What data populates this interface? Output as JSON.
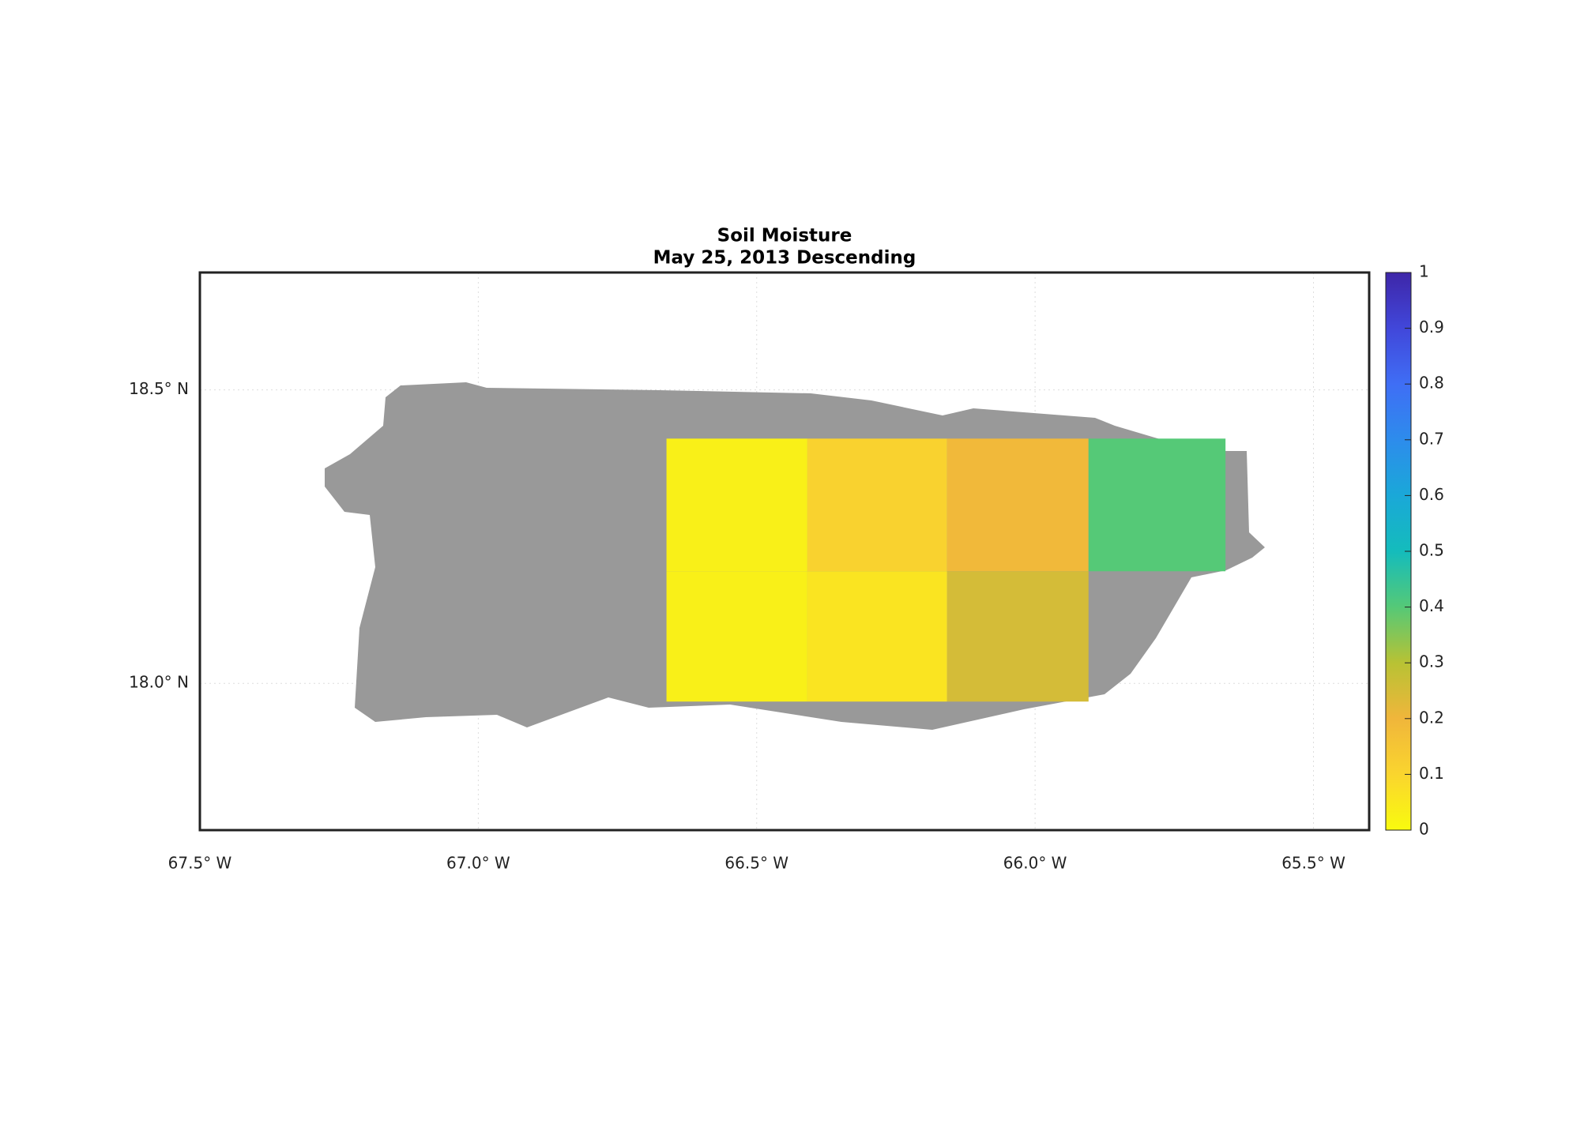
{
  "chart_data": {
    "type": "gridmap",
    "title": "Soil Moisture",
    "subtitle": "May 25, 2013 Descending",
    "xlim": [
      -67.5,
      -65.4
    ],
    "ylim": [
      17.75,
      18.7
    ],
    "xticks": [
      {
        "value": -67.5,
        "label": "67.5° W"
      },
      {
        "value": -67.0,
        "label": "67.0° W"
      },
      {
        "value": -66.5,
        "label": "66.5° W"
      },
      {
        "value": -66.0,
        "label": "66.0° W"
      },
      {
        "value": -65.5,
        "label": "65.5° W"
      }
    ],
    "yticks": [
      {
        "value": 18.0,
        "label": "18.0° N"
      },
      {
        "value": 18.5,
        "label": "18.5° N"
      }
    ],
    "grid": true,
    "land_color": "#999999",
    "cells": [
      {
        "lon": [
          -66.662,
          -66.409
        ],
        "lat": [
          18.191,
          18.417
        ],
        "value": 0.03
      },
      {
        "lon": [
          -66.409,
          -66.158
        ],
        "lat": [
          18.191,
          18.417
        ],
        "value": 0.11
      },
      {
        "lon": [
          -66.158,
          -65.904
        ],
        "lat": [
          18.191,
          18.417
        ],
        "value": 0.19
      },
      {
        "lon": [
          -65.904,
          -65.658
        ],
        "lat": [
          18.191,
          18.417
        ],
        "value": 0.4
      },
      {
        "lon": [
          -66.662,
          -66.409
        ],
        "lat": [
          17.969,
          18.191
        ],
        "value": 0.03
      },
      {
        "lon": [
          -66.409,
          -66.158
        ],
        "lat": [
          17.969,
          18.191
        ],
        "value": 0.06
      },
      {
        "lon": [
          -66.158,
          -65.904
        ],
        "lat": [
          17.969,
          18.191
        ],
        "value": 0.25
      }
    ],
    "colorbar": {
      "lim": [
        0,
        1
      ],
      "ticks": [
        0,
        0.1,
        0.2,
        0.3,
        0.4,
        0.5,
        0.6,
        0.7,
        0.8,
        0.9,
        1
      ],
      "colors": [
        "#f9fb0e",
        "#fad52e",
        "#f0b63b",
        "#b8c234",
        "#55c977",
        "#14bcbc",
        "#1aa8d8",
        "#2d8cec",
        "#3f6ef5",
        "#4147da",
        "#3e26a8"
      ]
    }
  }
}
